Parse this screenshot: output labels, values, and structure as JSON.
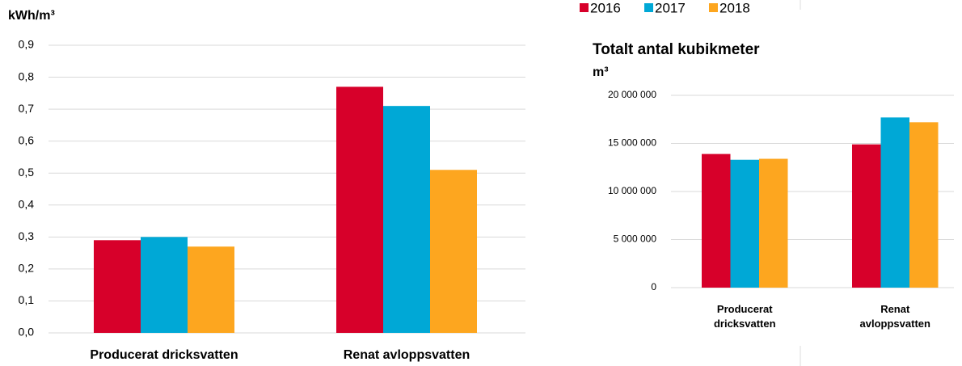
{
  "chart_data": [
    {
      "type": "bar",
      "y_label": "kWh/m³",
      "categories": [
        "Producerat dricksvatten",
        "Renat avloppsvatten"
      ],
      "series": [
        {
          "name": "2016",
          "color": "#d7002a",
          "values": [
            0.29,
            0.77
          ]
        },
        {
          "name": "2017",
          "color": "#00a8d6",
          "values": [
            0.3,
            0.71
          ]
        },
        {
          "name": "2018",
          "color": "#fda61f",
          "values": [
            0.27,
            0.51
          ]
        }
      ],
      "ylim": [
        0,
        0.9
      ],
      "yticks": [
        {
          "value": 0,
          "label": "0,0"
        },
        {
          "value": 0.1,
          "label": "0,1"
        },
        {
          "value": 0.2,
          "label": "0,2"
        },
        {
          "value": 0.3,
          "label": "0,3"
        },
        {
          "value": 0.4,
          "label": "0,4"
        },
        {
          "value": 0.5,
          "label": "0,5"
        },
        {
          "value": 0.6,
          "label": "0,6"
        },
        {
          "value": 0.7,
          "label": "0,7"
        },
        {
          "value": 0.8,
          "label": "0,8"
        },
        {
          "value": 0.9,
          "label": "0,9"
        }
      ],
      "grid": true
    },
    {
      "type": "bar",
      "title": "Totalt antal kubikmeter",
      "y_label": "m³",
      "categories": [
        "Producerat dricksvatten",
        "Renat avloppsvatten"
      ],
      "series": [
        {
          "color": "#d7002a",
          "values": [
            13900000,
            14900000
          ]
        },
        {
          "color": "#00a8d6",
          "values": [
            13300000,
            17700000
          ]
        },
        {
          "color": "#fda61f",
          "values": [
            13400000,
            17200000
          ]
        }
      ],
      "ylim": [
        0,
        20000000
      ],
      "yticks": [
        0,
        {
          "value": 5000000,
          "label": "5 000 000"
        },
        {
          "value": 10000000,
          "label": "10 000 000"
        },
        {
          "value": 15000000,
          "label": "15 000 000"
        },
        {
          "value": 20000000,
          "label": "20 000 000"
        }
      ],
      "grid": true
    }
  ]
}
